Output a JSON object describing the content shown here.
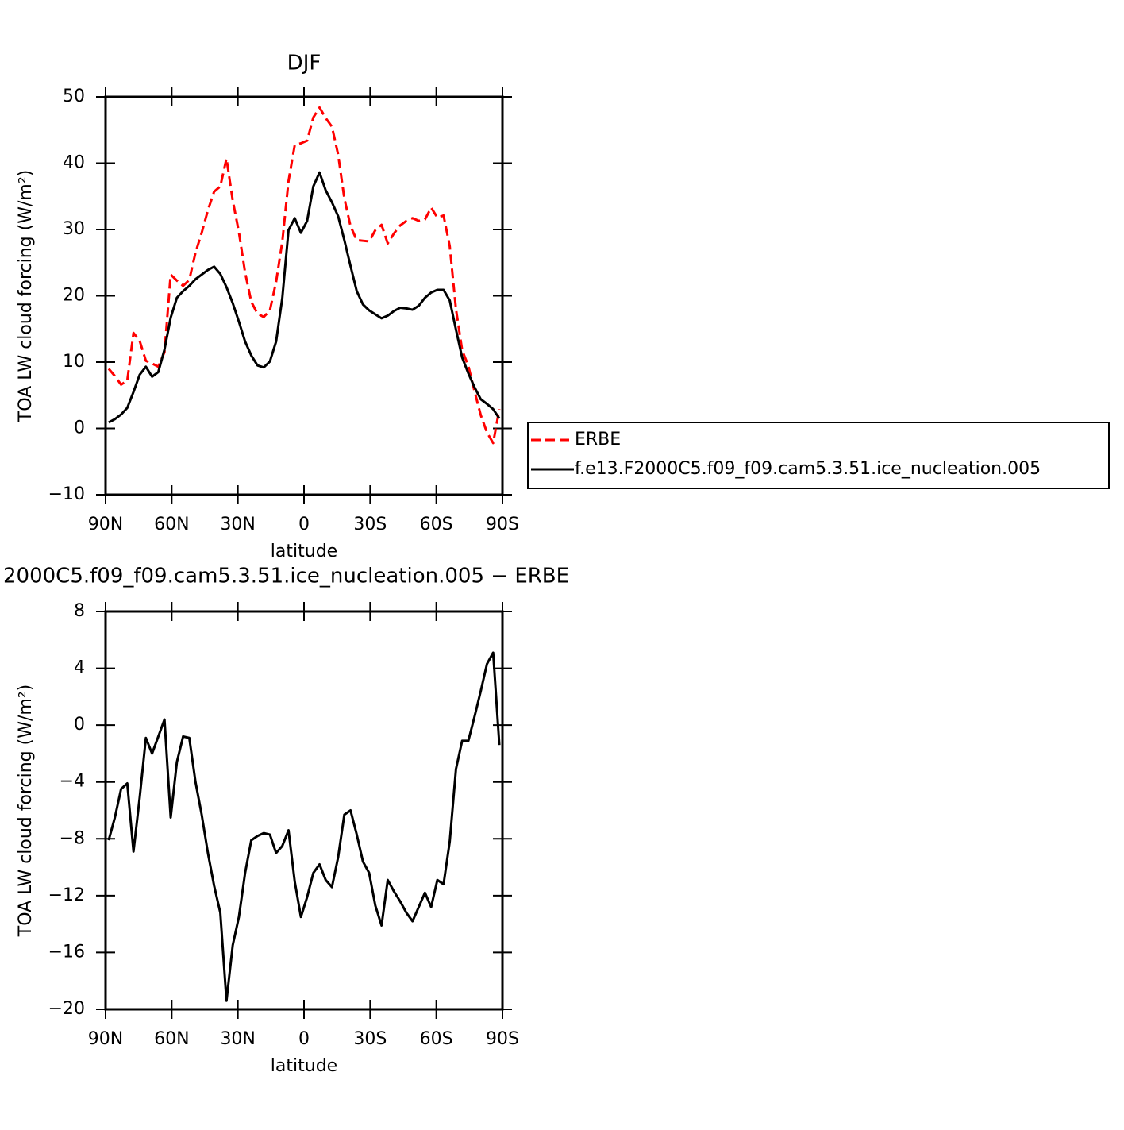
{
  "chart_data": [
    {
      "type": "line",
      "title": "DJF",
      "xlabel": "latitude",
      "ylabel": "TOA LW cloud forcing (W/m²)",
      "x": [
        88.59,
        85.78,
        82.97,
        80.16,
        77.34,
        74.53,
        71.72,
        68.91,
        66.09,
        63.28,
        60.47,
        57.66,
        54.84,
        52.03,
        49.22,
        46.41,
        43.59,
        40.78,
        37.97,
        35.16,
        32.34,
        29.53,
        26.72,
        23.91,
        21.09,
        18.28,
        15.47,
        12.66,
        9.84,
        7.03,
        4.22,
        1.41,
        -1.41,
        -4.22,
        -7.03,
        -9.84,
        -12.66,
        -15.47,
        -18.28,
        -21.09,
        -23.91,
        -26.72,
        -29.53,
        -32.34,
        -35.16,
        -37.97,
        -40.78,
        -43.59,
        -46.41,
        -49.22,
        -52.03,
        -54.84,
        -57.66,
        -60.47,
        -63.28,
        -66.09,
        -68.91,
        -71.72,
        -74.53,
        -77.34,
        -80.16,
        -82.97,
        -85.78,
        -88.59
      ],
      "series": [
        {
          "name": "ERBE",
          "color": "#ff0000",
          "dashed": true,
          "values": [
            9.0,
            7.9,
            6.6,
            7.2,
            14.4,
            13.2,
            10.2,
            9.8,
            9.3,
            11.5,
            23.2,
            22.3,
            21.5,
            22.4,
            26.5,
            29.5,
            32.9,
            35.7,
            36.5,
            40.7,
            34.4,
            29.6,
            23.5,
            19.1,
            17.3,
            16.8,
            17.8,
            22.1,
            28.2,
            37.3,
            42.7,
            43.0,
            43.4,
            46.9,
            48.4,
            46.8,
            45.5,
            41.3,
            34.7,
            30.5,
            28.4,
            28.3,
            28.2,
            29.9,
            30.7,
            27.9,
            29.4,
            30.6,
            31.3,
            31.7,
            31.3,
            31.5,
            33.3,
            31.8,
            32.1,
            27.5,
            18.0,
            11.8,
            9.4,
            5.6,
            2.0,
            -0.6,
            -2.2,
            2.9
          ]
        },
        {
          "name": "f.e13.F2000C5.f09_f09.cam5.3.51.ice_nucleation.005",
          "color": "#000000",
          "dashed": false,
          "values": [
            0.9,
            1.4,
            2.1,
            3.1,
            5.5,
            8.1,
            9.3,
            7.8,
            8.5,
            11.9,
            16.7,
            19.7,
            20.7,
            21.5,
            22.5,
            23.2,
            23.9,
            24.4,
            23.3,
            21.3,
            18.9,
            16.1,
            13.1,
            11.0,
            9.5,
            9.2,
            10.1,
            13.1,
            19.7,
            29.9,
            31.7,
            29.5,
            31.3,
            36.5,
            38.6,
            35.9,
            34.1,
            32.0,
            28.4,
            24.5,
            20.7,
            18.7,
            17.8,
            17.2,
            16.6,
            17.0,
            17.7,
            18.2,
            18.1,
            17.9,
            18.5,
            19.7,
            20.5,
            20.9,
            20.9,
            19.3,
            14.9,
            10.7,
            8.3,
            6.2,
            4.4,
            3.7,
            2.9,
            1.5
          ]
        }
      ],
      "xlim": [
        90,
        -90
      ],
      "xticks": [
        {
          "value": 90,
          "label": "90N"
        },
        {
          "value": 60,
          "label": "60N"
        },
        {
          "value": 30,
          "label": "30N"
        },
        0,
        {
          "value": -30,
          "label": "30S"
        },
        {
          "value": -60,
          "label": "60S"
        },
        {
          "value": -90,
          "label": "90S"
        }
      ],
      "ylim": [
        -10,
        50
      ],
      "yticks": [
        {
          "value": -10,
          "label": "−10"
        },
        0,
        10,
        20,
        30,
        40,
        50
      ],
      "legend": "right"
    },
    {
      "type": "line",
      "title": "2000C5.f09_f09.cam5.3.51.ice_nucleation.005 − ERBE",
      "xlabel": "latitude",
      "ylabel": "TOA LW cloud forcing (W/m²)",
      "x": [
        88.59,
        85.78,
        82.97,
        80.16,
        77.34,
        74.53,
        71.72,
        68.91,
        66.09,
        63.28,
        60.47,
        57.66,
        54.84,
        52.03,
        49.22,
        46.41,
        43.59,
        40.78,
        37.97,
        35.16,
        32.34,
        29.53,
        26.72,
        23.91,
        21.09,
        18.28,
        15.47,
        12.66,
        9.84,
        7.03,
        4.22,
        1.41,
        -1.41,
        -4.22,
        -7.03,
        -9.84,
        -12.66,
        -15.47,
        -18.28,
        -21.09,
        -23.91,
        -26.72,
        -29.53,
        -32.34,
        -35.16,
        -37.97,
        -40.78,
        -43.59,
        -46.41,
        -49.22,
        -52.03,
        -54.84,
        -57.66,
        -60.47,
        -63.28,
        -66.09,
        -68.91,
        -71.72,
        -74.53,
        -77.34,
        -80.16,
        -82.97,
        -85.78,
        -88.59
      ],
      "series": [
        {
          "color": "#000000",
          "dashed": false,
          "values": [
            -8.1,
            -6.5,
            -4.5,
            -4.1,
            -8.9,
            -5.1,
            -0.9,
            -2.0,
            -0.8,
            0.4,
            -6.5,
            -2.6,
            -0.8,
            -0.9,
            -4.0,
            -6.3,
            -9.0,
            -11.3,
            -13.2,
            -19.4,
            -15.5,
            -13.5,
            -10.4,
            -8.1,
            -7.8,
            -7.6,
            -7.7,
            -9.0,
            -8.5,
            -7.4,
            -11.0,
            -13.5,
            -12.1,
            -10.4,
            -9.8,
            -10.9,
            -11.4,
            -9.3,
            -6.3,
            -6.0,
            -7.7,
            -9.6,
            -10.4,
            -12.7,
            -14.1,
            -10.9,
            -11.7,
            -12.4,
            -13.2,
            -13.8,
            -12.8,
            -11.8,
            -12.8,
            -10.9,
            -11.2,
            -8.2,
            -3.1,
            -1.1,
            -1.1,
            0.6,
            2.4,
            4.3,
            5.1,
            -1.4
          ]
        }
      ],
      "xlim": [
        90,
        -90
      ],
      "xticks": [
        {
          "value": 90,
          "label": "90N"
        },
        {
          "value": 60,
          "label": "60N"
        },
        {
          "value": 30,
          "label": "30N"
        },
        0,
        {
          "value": -30,
          "label": "30S"
        },
        {
          "value": -60,
          "label": "60S"
        },
        {
          "value": -90,
          "label": "90S"
        }
      ],
      "ylim": [
        -20,
        8
      ],
      "yticks": [
        {
          "value": -20,
          "label": "−20"
        },
        {
          "value": -16,
          "label": "−16"
        },
        {
          "value": -12,
          "label": "−12"
        },
        {
          "value": -8,
          "label": "−8"
        },
        {
          "value": -4,
          "label": "−4"
        },
        0,
        4,
        8
      ]
    }
  ]
}
